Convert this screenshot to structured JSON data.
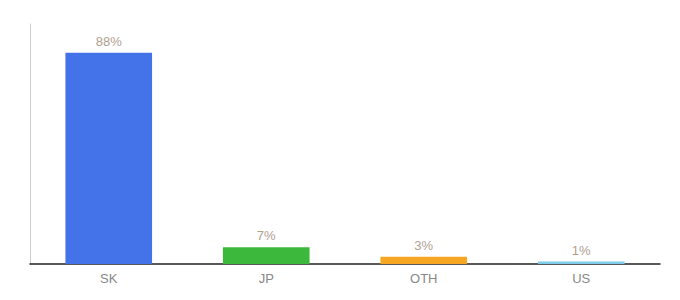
{
  "chart_data": {
    "type": "bar",
    "categories": [
      "SK",
      "JP",
      "OTH",
      "US"
    ],
    "values": [
      88,
      7,
      3,
      1
    ],
    "value_labels": [
      "88%",
      "7%",
      "3%",
      "1%"
    ],
    "data_labels": true,
    "colors": [
      "#4472e8",
      "#3cb93c",
      "#f5a623",
      "#7eccea"
    ],
    "ylim": [
      0,
      100
    ],
    "tick_labels": "x",
    "grid": false
  }
}
